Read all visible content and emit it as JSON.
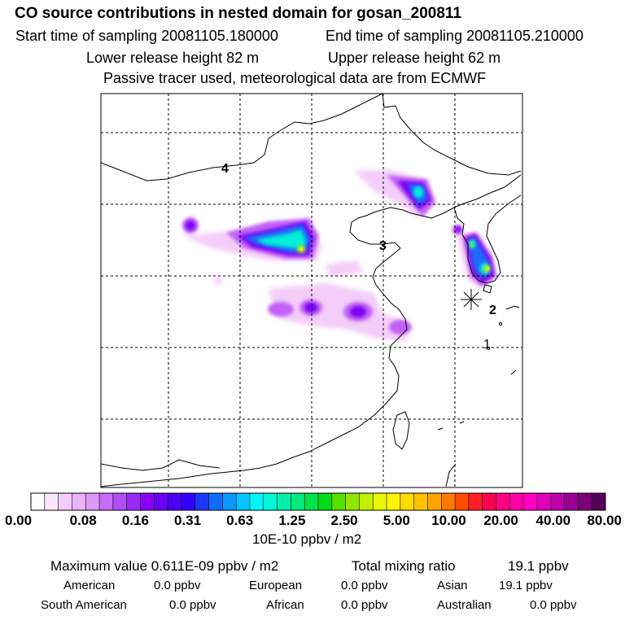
{
  "header": {
    "title": "CO  source contributions in nested domain for gosan_200811",
    "start_label": "Start time of sampling 20081105.180000",
    "end_label": "End time of sampling 20081105.210000",
    "lower_label": "Lower release height   82 m",
    "upper_label": "Upper release height   62 m",
    "tracer_label": "Passive tracer used, meteorological data are from ECMWF"
  },
  "map": {
    "labels": {
      "l1": "1",
      "l2": "2",
      "l3": "3",
      "l4": "4"
    },
    "receptor_marker": "asterisk-icon"
  },
  "legend": {
    "colors": [
      "#ffffff",
      "#fbe6fd",
      "#f4ccfb",
      "#eab2f9",
      "#dd99f7",
      "#c66cf5",
      "#b04ef4",
      "#9b28f3",
      "#8c00f3",
      "#6a00f4",
      "#4a00f5",
      "#3000f8",
      "#1d37fb",
      "#0f6cfc",
      "#0a98fd",
      "#05c4fe",
      "#00f5fe",
      "#00f5d9",
      "#00f0aa",
      "#00ec7a",
      "#00e44a",
      "#00dc16",
      "#5ae000",
      "#90e800",
      "#c0f000",
      "#e8f800",
      "#fff500",
      "#ffdc00",
      "#ffc200",
      "#ffa300",
      "#ff7a00",
      "#ff4d00",
      "#ff1f25",
      "#ff0052",
      "#ff0080",
      "#ff00a5",
      "#ff00c4",
      "#e000ba",
      "#c000a8",
      "#9c0093",
      "#7a0079",
      "#56005a"
    ],
    "ticks": [
      "0.00",
      "0.08",
      "0.16",
      "0.31",
      "0.63",
      "1.25",
      "2.50",
      "5.00",
      "10.00",
      "20.00",
      "40.00",
      "80.00"
    ],
    "units": "10E-10 ppbv / m2"
  },
  "stats": {
    "max_label": "Maximum value  0.611E-09 ppbv / m2",
    "total_label": "Total mixing ratio",
    "total_value": "19.1 ppbv",
    "american_label": "American",
    "american_value": "0.0 ppbv",
    "european_label": "European",
    "european_value": "0.0 ppbv",
    "asian_label": "Asian",
    "asian_value": "19.1 ppbv",
    "south_american_label": "South American",
    "south_american_value": "0.0 ppbv",
    "african_label": "African",
    "african_value": "0.0 ppbv",
    "australian_label": "Australian",
    "australian_value": "0.0 ppbv"
  }
}
